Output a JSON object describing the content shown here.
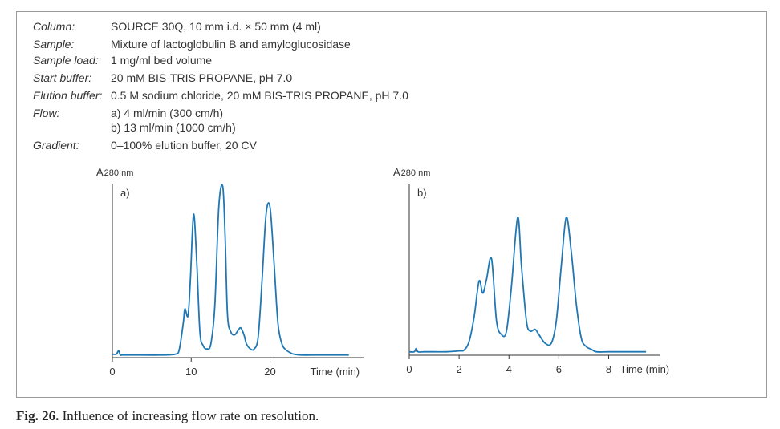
{
  "conditions": [
    {
      "label": "Column:",
      "values": [
        "SOURCE 30Q, 10 mm i.d. × 50 mm (4 ml)"
      ]
    },
    {
      "label": "Sample:",
      "values": [
        "Mixture of lactoglobulin B and amyloglucosidase"
      ]
    },
    {
      "label": "Sample load:",
      "values": [
        "1 mg/ml bed volume"
      ]
    },
    {
      "label": "Start buffer:",
      "values": [
        "20 mM BIS-TRIS PROPANE, pH 7.0"
      ]
    },
    {
      "label": "Elution buffer:",
      "values": [
        "0.5 M sodium chloride, 20 mM BIS-TRIS PROPANE, pH 7.0"
      ]
    },
    {
      "label": "Flow:",
      "values": [
        "a) 4 ml/min (300 cm/h)",
        "b) 13 ml/min (1000 cm/h)"
      ]
    },
    {
      "label": "Gradient:",
      "values": [
        "0–100% elution buffer, 20 CV"
      ]
    }
  ],
  "caption": {
    "fig_label": "Fig. 26.",
    "text": " Influence of increasing flow rate on resolution."
  },
  "colors": {
    "trace": "#1f78b4",
    "axis": "#333333",
    "frame": "#9a9a9a"
  },
  "chart_data": [
    {
      "type": "line",
      "panel_label": "a)",
      "ylabel": "A",
      "ylabel_sub": "280 nm",
      "xlabel": "Time (min)",
      "xlim": [
        0,
        30
      ],
      "ylim": [
        0,
        1
      ],
      "xticks": [
        0,
        10,
        20
      ],
      "xtick_labels": [
        "0",
        "10",
        "20"
      ],
      "series": [
        {
          "x": [
            0,
            0.5,
            0.8,
            1.0,
            1.2,
            1.5,
            3,
            6,
            8,
            8.5,
            9,
            9.2,
            9.6,
            9.9,
            10.3,
            10.7,
            11.1,
            11.5,
            12,
            12.5,
            13,
            13.5,
            14,
            14.3,
            14.6,
            15,
            15.5,
            16,
            16.3,
            16.7,
            17,
            17.5,
            18,
            18.5,
            19,
            19.5,
            20,
            20.5,
            21,
            21.5,
            22,
            22.5,
            23,
            24,
            26,
            28,
            30
          ],
          "y": [
            0.02,
            0.02,
            0.04,
            0.015,
            0.015,
            0.015,
            0.015,
            0.015,
            0.02,
            0.05,
            0.2,
            0.28,
            0.24,
            0.45,
            0.82,
            0.55,
            0.15,
            0.07,
            0.05,
            0.08,
            0.3,
            0.86,
            0.98,
            0.7,
            0.25,
            0.15,
            0.13,
            0.16,
            0.17,
            0.13,
            0.08,
            0.05,
            0.05,
            0.12,
            0.45,
            0.82,
            0.86,
            0.55,
            0.2,
            0.08,
            0.045,
            0.03,
            0.02,
            0.015,
            0.015,
            0.015,
            0.015
          ]
        }
      ]
    },
    {
      "type": "line",
      "panel_label": "b)",
      "ylabel": "A",
      "ylabel_sub": "280 nm",
      "xlabel": "Time (min)",
      "xlim": [
        0,
        9.5
      ],
      "ylim": [
        0,
        1
      ],
      "xticks": [
        0,
        2,
        4,
        6,
        8
      ],
      "xtick_labels": [
        "0",
        "2",
        "4",
        "6",
        "8"
      ],
      "series": [
        {
          "x": [
            0,
            0.2,
            0.28,
            0.35,
            0.6,
            1.0,
            1.5,
            2.0,
            2.2,
            2.4,
            2.6,
            2.8,
            2.95,
            3.1,
            3.3,
            3.5,
            3.7,
            3.9,
            4.1,
            4.35,
            4.5,
            4.7,
            4.85,
            5.05,
            5.2,
            5.45,
            5.7,
            5.9,
            6.1,
            6.3,
            6.5,
            6.7,
            6.9,
            7.1,
            7.3,
            7.5,
            8,
            9,
            9.5
          ],
          "y": [
            0.02,
            0.02,
            0.04,
            0.02,
            0.02,
            0.02,
            0.02,
            0.025,
            0.03,
            0.08,
            0.22,
            0.43,
            0.36,
            0.44,
            0.56,
            0.2,
            0.12,
            0.14,
            0.4,
            0.8,
            0.52,
            0.2,
            0.14,
            0.15,
            0.12,
            0.07,
            0.07,
            0.2,
            0.52,
            0.8,
            0.6,
            0.3,
            0.1,
            0.05,
            0.035,
            0.02,
            0.02,
            0.02,
            0.02
          ]
        }
      ]
    }
  ]
}
